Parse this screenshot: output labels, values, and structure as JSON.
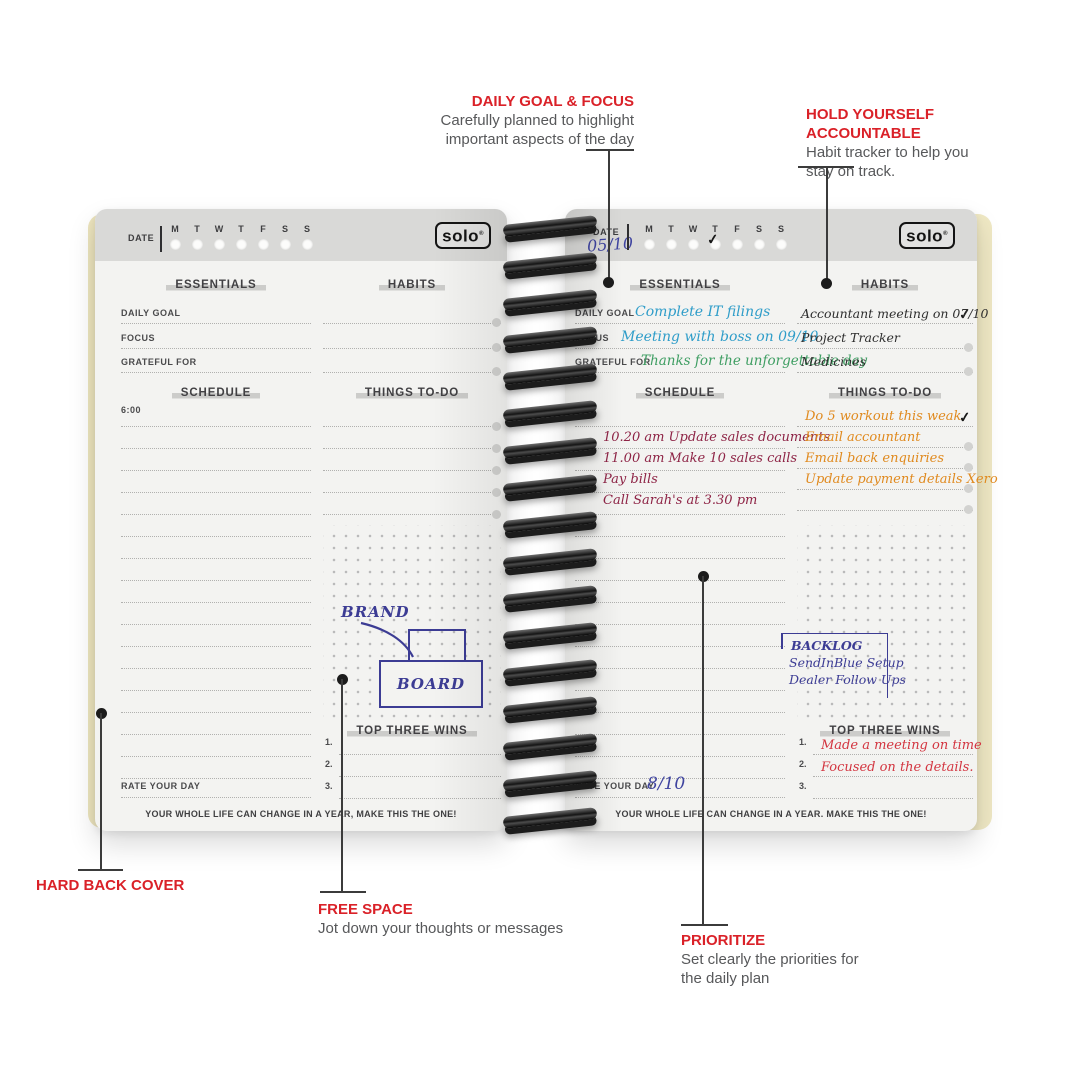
{
  "colors": {
    "accent_red": "#da2128",
    "desc_gray": "#57585a",
    "ink_blue": "#2f9dc9",
    "ink_green": "#3f9e63",
    "ink_maroon": "#8e2446",
    "ink_orange": "#e08a1f",
    "ink_red": "#d33540",
    "ink_navy": "#3c3c94",
    "ink_date_blue": "#3f44a0"
  },
  "annotations": {
    "daily_goal_focus": {
      "title": "DAILY GOAL & FOCUS",
      "desc1": "Carefully planned to highlight",
      "desc2": "important aspects of the day"
    },
    "accountable": {
      "title": "HOLD YOURSELF ACCOUNTABLE",
      "desc1": "Habit tracker to help you",
      "desc2": "stay on track."
    },
    "hard_back_cover": {
      "title": "HARD BACK COVER"
    },
    "free_space": {
      "title": "FREE SPACE",
      "desc1": "Jot down your thoughts or messages"
    },
    "prioritize": {
      "title": "PRIORITIZE",
      "desc1": "Set clearly the priorities for",
      "desc2": "the daily plan"
    }
  },
  "template": {
    "date_label": "DATE",
    "days": [
      "M",
      "T",
      "W",
      "T",
      "F",
      "S",
      "S"
    ],
    "logo": "solo",
    "logo_reg": "®",
    "essentials_header": "ESSENTIALS",
    "habits_header": "HABITS",
    "schedule_header": "SCHEDULE",
    "todo_header": "THINGS TO-DO",
    "wins_header": "TOP THREE WINS",
    "rate_label": "RATE YOUR DAY",
    "daily_goal_label": "DAILY GOAL",
    "focus_label": "FOCUS",
    "grateful_label": "GRATEFUL FOR",
    "schedule_start": "6:00",
    "win_numbers": [
      "1.",
      "2.",
      "3."
    ],
    "footer_left": "YOUR WHOLE LIFE CAN CHANGE IN A YEAR, MAKE THIS THE ONE!",
    "footer_right": "YOUR WHOLE LIFE CAN CHANGE IN A YEAR. MAKE THIS THE ONE!",
    "checkmark": "✓"
  },
  "right_page": {
    "date_value": "05/10",
    "checked_day_index": 3,
    "daily_goal": "Complete IT filings",
    "focus": "Meeting with boss on 09/10",
    "grateful": "Thanks for the unforgettable day",
    "habits": [
      "Accountant meeting on 07/10",
      "Project Tracker",
      "Medicines"
    ],
    "schedule": [
      "10.20 am Update sales documents",
      "11.00 am Make 10 sales calls",
      "Pay bills",
      "Call Sarah's at 3.30 pm"
    ],
    "todos": [
      "Do 5 workout this weak",
      "Email accountant",
      "Email back enquiries",
      "Update payment details Xero"
    ],
    "backlog_title": "BACKLOG",
    "backlog_items": [
      "SendInBlue Setup",
      "Dealer Follow Ups"
    ],
    "wins": [
      "Made a meeting on time",
      "Focused on the details."
    ],
    "rating": "8/10"
  },
  "left_page": {
    "sketch_brand": "BRAND",
    "sketch_board": "BOARD"
  }
}
